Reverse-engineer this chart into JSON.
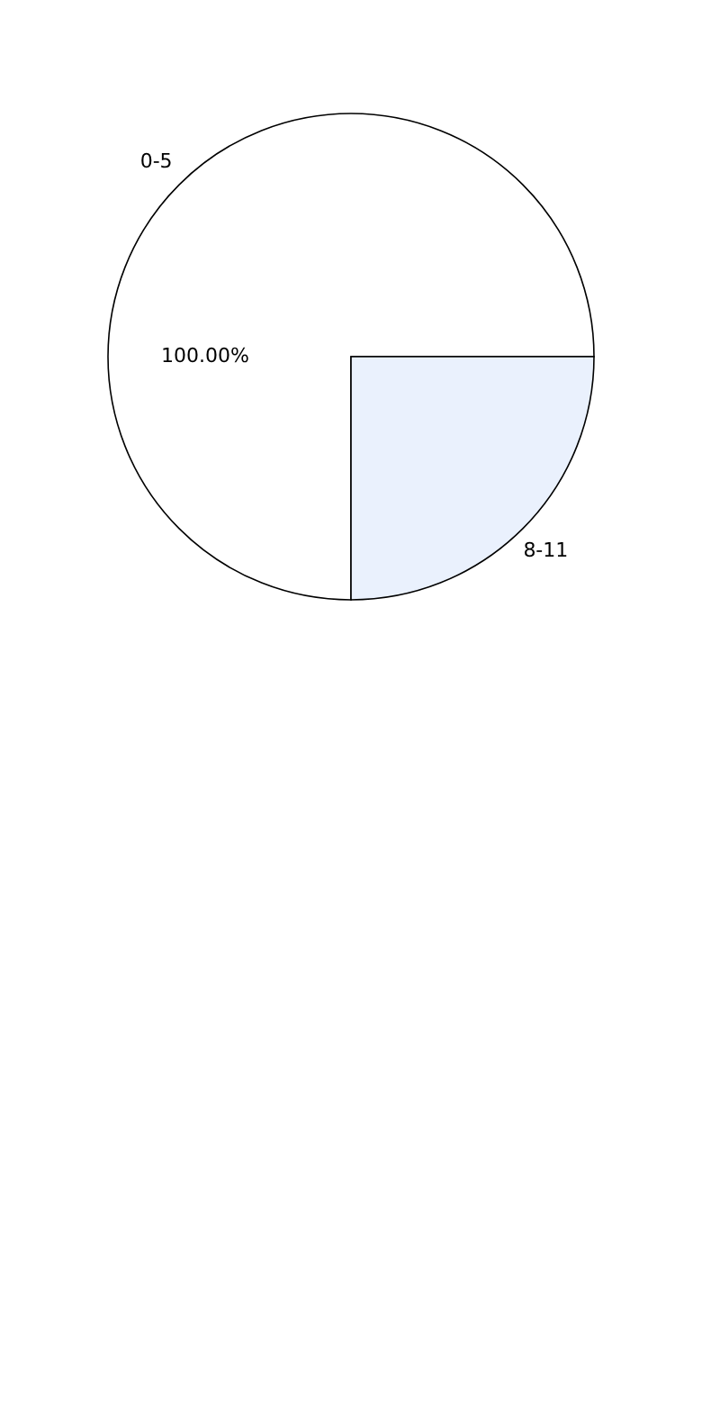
{
  "chart_data": {
    "type": "pie",
    "categories": [
      "0-5",
      "8-11"
    ],
    "values": [
      75,
      25
    ],
    "colors": [
      "#ffffff",
      "#eaf1fd"
    ],
    "annotations": [
      "100.00%"
    ],
    "legend": false
  }
}
